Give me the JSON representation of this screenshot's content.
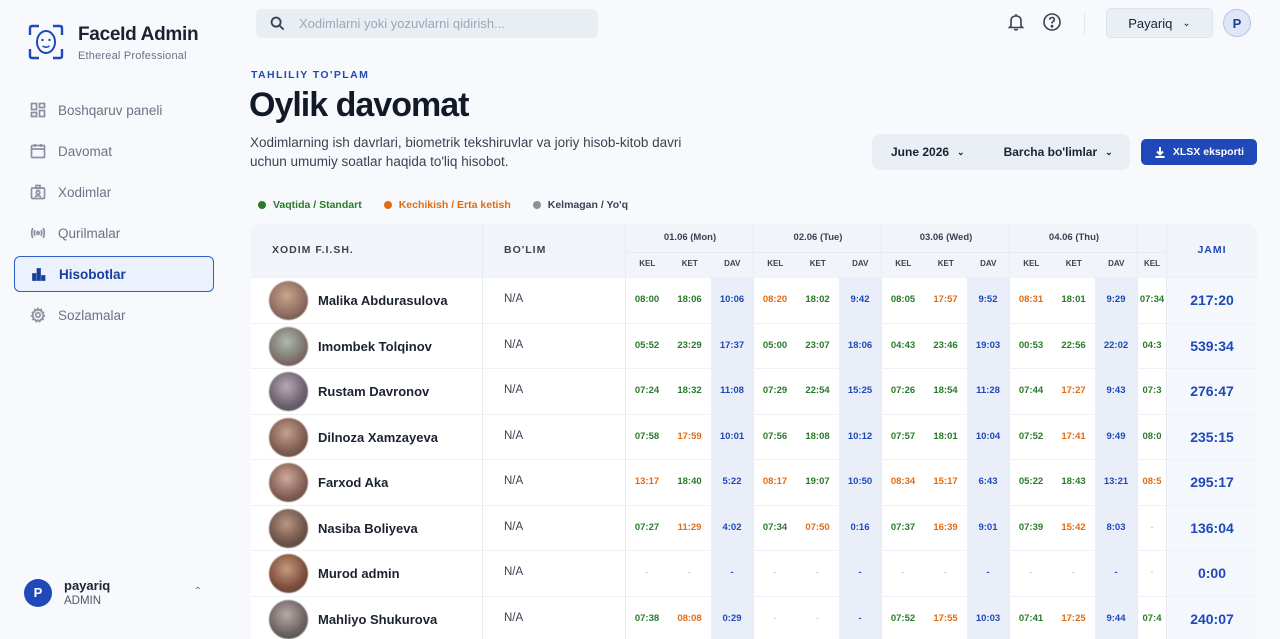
{
  "brand": {
    "title": "FaceId Admin",
    "subtitle": "Ethereal Professional"
  },
  "sidebar": {
    "items": [
      {
        "label": "Boshqaruv paneli",
        "icon": "grid-icon",
        "active": false
      },
      {
        "label": "Davomat",
        "icon": "calendar-icon",
        "active": false
      },
      {
        "label": "Xodimlar",
        "icon": "badge-icon",
        "active": false
      },
      {
        "label": "Qurilmalar",
        "icon": "broadcast-icon",
        "active": false
      },
      {
        "label": "Hisobotlar",
        "icon": "bar-chart-icon",
        "active": true
      },
      {
        "label": "Sozlamalar",
        "icon": "gear-icon",
        "active": false
      }
    ],
    "user": {
      "initial": "P",
      "name": "payariq",
      "role": "ADMIN"
    }
  },
  "topbar": {
    "search_placeholder": "Xodimlarni yoki yozuvlarni qidirish...",
    "org_select": "Payariq",
    "avatar_initial": "P"
  },
  "header": {
    "eyebrow": "TAHLILIY TO'PLAM",
    "title": "Oylik davomat",
    "description": "Xodimlarning ish davrlari, biometrik tekshiruvlar va joriy hisob-kitob davri uchun umumiy soatlar haqida to'liq hisobot.",
    "month_filter": "June 2026",
    "dept_filter": "Barcha bo'limlar",
    "export_label": "XLSX eksporti"
  },
  "legend": [
    {
      "label": "Vaqtida / Standart",
      "color": "#2a7a2a"
    },
    {
      "label": "Kechikish / Erta ketish",
      "color": "#e36b12"
    },
    {
      "label": "Kelmagan / Yo'q",
      "color": "#8a8f99"
    }
  ],
  "table": {
    "col_name": "XODIM F.I.SH.",
    "col_dept": "BO'LIM",
    "col_total": "JAMI",
    "days": [
      "01.06 (Mon)",
      "02.06 (Tue)",
      "03.06 (Wed)",
      "04.06 (Thu)"
    ],
    "sub_cols": [
      "KEL",
      "KET",
      "DAV"
    ],
    "partial_sub": "KEL",
    "rows": [
      {
        "name": "Malika Abdurasulova",
        "dept": "N/A",
        "cells": [
          [
            "08:00",
            "g"
          ],
          [
            "18:06",
            "g"
          ],
          [
            "10:06",
            "b"
          ],
          [
            "08:20",
            "o"
          ],
          [
            "18:02",
            "g"
          ],
          [
            "9:42",
            "b"
          ],
          [
            "08:05",
            "g"
          ],
          [
            "17:57",
            "o"
          ],
          [
            "9:52",
            "b"
          ],
          [
            "08:31",
            "o"
          ],
          [
            "18:01",
            "g"
          ],
          [
            "9:29",
            "b"
          ],
          [
            "07:34",
            "g"
          ]
        ],
        "total": "217:20"
      },
      {
        "name": "Imombek Tolqinov",
        "dept": "N/A",
        "cells": [
          [
            "05:52",
            "g"
          ],
          [
            "23:29",
            "g"
          ],
          [
            "17:37",
            "b"
          ],
          [
            "05:00",
            "g"
          ],
          [
            "23:07",
            "g"
          ],
          [
            "18:06",
            "b"
          ],
          [
            "04:43",
            "g"
          ],
          [
            "23:46",
            "g"
          ],
          [
            "19:03",
            "b"
          ],
          [
            "00:53",
            "g"
          ],
          [
            "22:56",
            "g"
          ],
          [
            "22:02",
            "b"
          ],
          [
            "04:3",
            "g"
          ]
        ],
        "total": "539:34"
      },
      {
        "name": "Rustam Davronov",
        "dept": "N/A",
        "cells": [
          [
            "07:24",
            "g"
          ],
          [
            "18:32",
            "g"
          ],
          [
            "11:08",
            "b"
          ],
          [
            "07:29",
            "g"
          ],
          [
            "22:54",
            "g"
          ],
          [
            "15:25",
            "b"
          ],
          [
            "07:26",
            "g"
          ],
          [
            "18:54",
            "g"
          ],
          [
            "11:28",
            "b"
          ],
          [
            "07:44",
            "g"
          ],
          [
            "17:27",
            "o"
          ],
          [
            "9:43",
            "b"
          ],
          [
            "07:3",
            "g"
          ]
        ],
        "total": "276:47"
      },
      {
        "name": "Dilnoza Xamzayeva",
        "dept": "N/A",
        "cells": [
          [
            "07:58",
            "g"
          ],
          [
            "17:59",
            "o"
          ],
          [
            "10:01",
            "b"
          ],
          [
            "07:56",
            "g"
          ],
          [
            "18:08",
            "g"
          ],
          [
            "10:12",
            "b"
          ],
          [
            "07:57",
            "g"
          ],
          [
            "18:01",
            "g"
          ],
          [
            "10:04",
            "b"
          ],
          [
            "07:52",
            "g"
          ],
          [
            "17:41",
            "o"
          ],
          [
            "9:49",
            "b"
          ],
          [
            "08:0",
            "g"
          ]
        ],
        "total": "235:15"
      },
      {
        "name": "Farxod Aka",
        "dept": "N/A",
        "cells": [
          [
            "13:17",
            "o"
          ],
          [
            "18:40",
            "g"
          ],
          [
            "5:22",
            "b"
          ],
          [
            "08:17",
            "o"
          ],
          [
            "19:07",
            "g"
          ],
          [
            "10:50",
            "b"
          ],
          [
            "08:34",
            "o"
          ],
          [
            "15:17",
            "o"
          ],
          [
            "6:43",
            "b"
          ],
          [
            "05:22",
            "g"
          ],
          [
            "18:43",
            "g"
          ],
          [
            "13:21",
            "b"
          ],
          [
            "08:5",
            "o"
          ]
        ],
        "total": "295:17"
      },
      {
        "name": "Nasiba Boliyeva",
        "dept": "N/A",
        "cells": [
          [
            "07:27",
            "g"
          ],
          [
            "11:29",
            "o"
          ],
          [
            "4:02",
            "b"
          ],
          [
            "07:34",
            "g"
          ],
          [
            "07:50",
            "o"
          ],
          [
            "0:16",
            "b"
          ],
          [
            "07:37",
            "g"
          ],
          [
            "16:39",
            "o"
          ],
          [
            "9:01",
            "b"
          ],
          [
            "07:39",
            "g"
          ],
          [
            "15:42",
            "o"
          ],
          [
            "8:03",
            "b"
          ],
          [
            "-",
            "x"
          ]
        ],
        "total": "136:04"
      },
      {
        "name": "Murod admin",
        "dept": "N/A",
        "cells": [
          [
            "-",
            "x"
          ],
          [
            "-",
            "x"
          ],
          [
            "-",
            "b"
          ],
          [
            "-",
            "x"
          ],
          [
            "-",
            "x"
          ],
          [
            "-",
            "b"
          ],
          [
            "-",
            "x"
          ],
          [
            "-",
            "x"
          ],
          [
            "-",
            "b"
          ],
          [
            "-",
            "x"
          ],
          [
            "-",
            "x"
          ],
          [
            "-",
            "b"
          ],
          [
            "-",
            "x"
          ]
        ],
        "total": "0:00"
      },
      {
        "name": "Mahliyo Shukurova",
        "dept": "N/A",
        "cells": [
          [
            "07:38",
            "g"
          ],
          [
            "08:08",
            "o"
          ],
          [
            "0:29",
            "b"
          ],
          [
            "-",
            "x"
          ],
          [
            "-",
            "x"
          ],
          [
            "-",
            "b"
          ],
          [
            "07:52",
            "g"
          ],
          [
            "17:55",
            "o"
          ],
          [
            "10:03",
            "b"
          ],
          [
            "07:41",
            "g"
          ],
          [
            "17:25",
            "o"
          ],
          [
            "9:44",
            "b"
          ],
          [
            "07:4",
            "g"
          ]
        ],
        "total": "240:07"
      }
    ]
  }
}
